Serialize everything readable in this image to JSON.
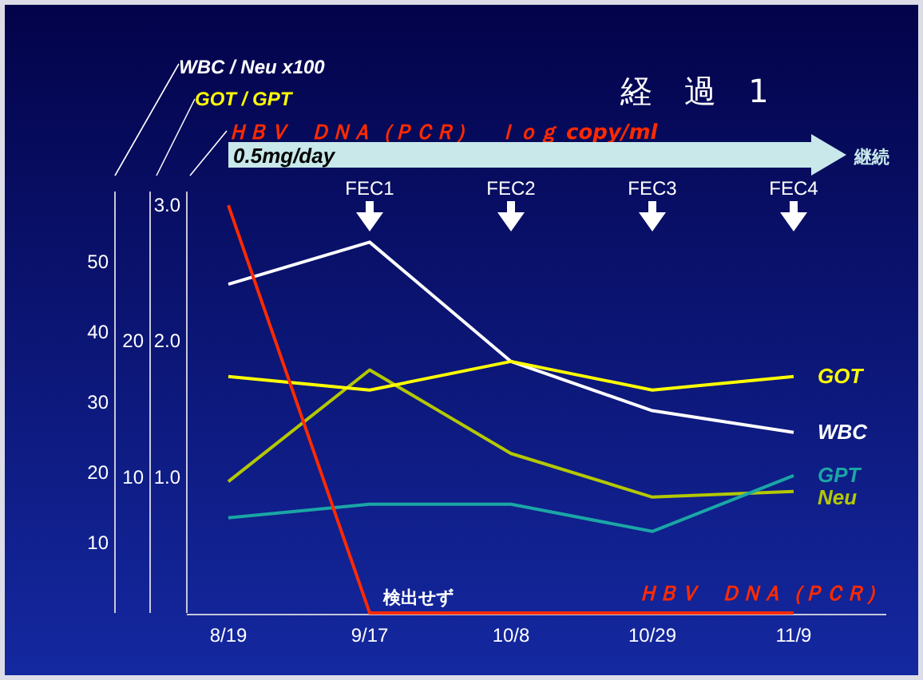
{
  "chart_data": {
    "type": "line",
    "title": "経　過　1",
    "categories": [
      "8/19",
      "9/17",
      "10/8",
      "10/29",
      "11/9"
    ],
    "y2label": "GOT / GPT",
    "y3label": "ＨＢＶ　ＤＮＡ（ＰＣＲ）　ｌｏｇ copy/ml",
    "ylim": [
      0,
      60
    ],
    "yticks": [
      10,
      20,
      30,
      40,
      50
    ],
    "y2lim": [
      0,
      31
    ],
    "y2ticks": [
      10,
      20
    ],
    "y3lim": [
      0,
      3.1
    ],
    "y3ticks": [
      {
        "value": 1,
        "label": "1.0"
      },
      {
        "value": 2,
        "label": "2.0"
      },
      {
        "value": 3,
        "label": "3.0"
      }
    ],
    "series": [
      {
        "name": "WBC",
        "color": "#ffffff",
        "values": [
          46.8,
          52.8,
          35.8,
          28.8,
          25.7
        ]
      },
      {
        "name": "Neu",
        "color": "#b4c800",
        "values": [
          18.7,
          34.6,
          22.7,
          16.5,
          17.3
        ]
      },
      {
        "name": "GOT",
        "color": "#ffff00",
        "axis": "y2",
        "values": [
          17.4,
          16.4,
          18.5,
          16.4,
          17.4
        ]
      },
      {
        "name": "GPT",
        "color": "#1ba6a6",
        "axis": "y2",
        "values": [
          7.0,
          8.0,
          8.0,
          6.0,
          10.1
        ]
      },
      {
        "name": "ＨＢＶ　ＤＮＡ（ＰＣＲ）",
        "color": "#ff2a00",
        "axis": "y3",
        "values": [
          3.0,
          0,
          0,
          0,
          0
        ]
      }
    ],
    "annotations": [
      "0.5mg/day",
      "継続",
      "FEC1",
      "FEC2",
      "FEC3",
      "FEC4",
      "検出せず",
      "WBC / Neu x100"
    ]
  }
}
